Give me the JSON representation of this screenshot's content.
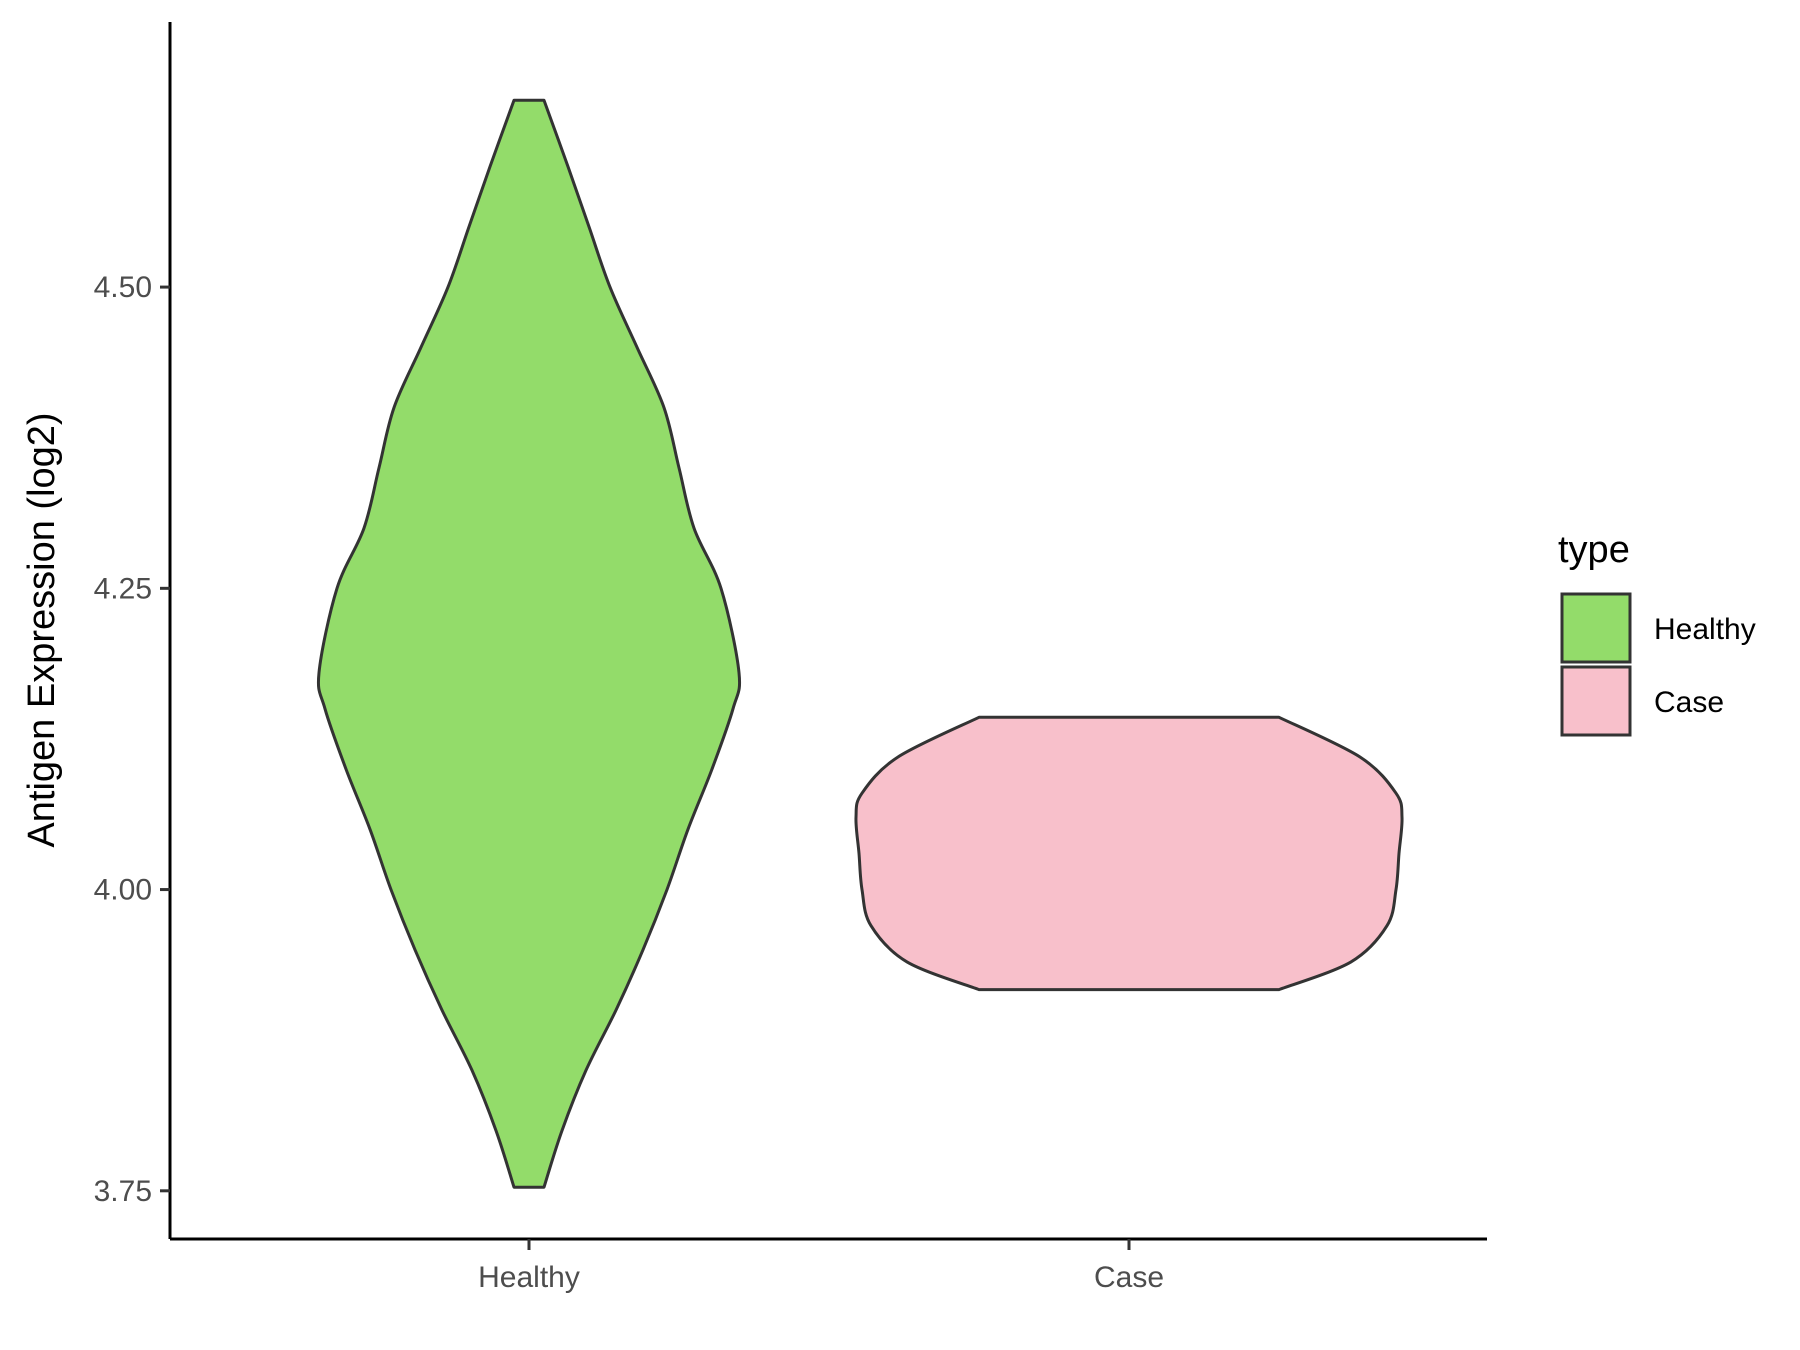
{
  "chart_data": {
    "type": "violin",
    "title": "",
    "xlabel": "",
    "ylabel": "Antigen Expression (log2)",
    "categories": [
      "Healthy",
      "Case"
    ],
    "y_ticks": [
      "3.75",
      "4.00",
      "4.25",
      "4.50"
    ],
    "y_tick_values": [
      3.75,
      4.0,
      4.25,
      4.5
    ],
    "ylim": [
      3.71,
      4.72
    ],
    "grid": false,
    "legend": {
      "title": "type",
      "placement": "right",
      "items": [
        {
          "label": "Healthy",
          "color": "#93DC6A"
        },
        {
          "label": "Case",
          "color": "#F8C0CB"
        }
      ]
    },
    "series": [
      {
        "category": "Healthy",
        "color": "#93DC6A",
        "min": 3.753,
        "max": 4.655,
        "density_profile": [
          [
            3.753,
            0.05
          ],
          [
            3.8,
            0.11
          ],
          [
            3.85,
            0.19
          ],
          [
            3.9,
            0.29
          ],
          [
            3.95,
            0.38
          ],
          [
            4.0,
            0.46
          ],
          [
            4.05,
            0.53
          ],
          [
            4.1,
            0.61
          ],
          [
            4.15,
            0.68
          ],
          [
            4.18,
            0.7
          ],
          [
            4.25,
            0.64
          ],
          [
            4.3,
            0.55
          ],
          [
            4.35,
            0.5
          ],
          [
            4.4,
            0.45
          ],
          [
            4.45,
            0.36
          ],
          [
            4.5,
            0.27
          ],
          [
            4.55,
            0.2
          ],
          [
            4.6,
            0.13
          ],
          [
            4.655,
            0.05
          ]
        ]
      },
      {
        "category": "Case",
        "color": "#F8C0CB",
        "min": 3.917,
        "max": 4.143,
        "density_profile": [
          [
            3.917,
            0.5
          ],
          [
            3.94,
            0.74
          ],
          [
            3.97,
            0.86
          ],
          [
            4.0,
            0.89
          ],
          [
            4.03,
            0.9
          ],
          [
            4.06,
            0.91
          ],
          [
            4.08,
            0.89
          ],
          [
            4.11,
            0.77
          ],
          [
            4.143,
            0.5
          ]
        ]
      }
    ]
  }
}
